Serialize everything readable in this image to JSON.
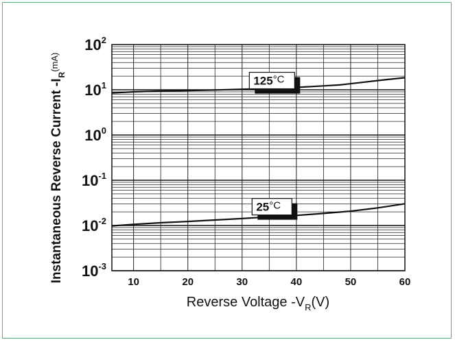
{
  "chart_data": {
    "type": "line",
    "ylabel": "Instantaneous Reverse Current -I",
    "ylabel_sub": "R",
    "ylabel_unit": "(mA)",
    "xlabel": "Reverse  Voltage -V",
    "xlabel_sub": "R",
    "xlabel_unit": "(V)",
    "xlim": [
      6,
      60
    ],
    "ylim": [
      0.001,
      100
    ],
    "yscale": "log",
    "grid": true,
    "x_ticks": [
      10,
      20,
      30,
      40,
      50,
      60
    ],
    "y_ticks": [
      {
        "value": 100,
        "base": "10",
        "exp": "2"
      },
      {
        "value": 10,
        "base": "10",
        "exp": "1"
      },
      {
        "value": 1,
        "base": "10",
        "exp": "0"
      },
      {
        "value": 0.1,
        "base": "10",
        "exp": "-1"
      },
      {
        "value": 0.01,
        "base": "10",
        "exp": "-2"
      },
      {
        "value": 0.001,
        "base": "10",
        "exp": "-3"
      }
    ],
    "series": [
      {
        "name": "125°C",
        "label_num": "125",
        "label_unit": "°C",
        "label_at": {
          "x": 35,
          "y": 16
        },
        "x": [
          6,
          10,
          15,
          20,
          25,
          30,
          35,
          40,
          45,
          48,
          52,
          56,
          60
        ],
        "y": [
          8.5,
          9.0,
          9.4,
          9.6,
          9.9,
          10.3,
          10.7,
          11.3,
          12.2,
          12.8,
          14.5,
          16.5,
          18.5
        ]
      },
      {
        "name": "25°C",
        "label_num": "25",
        "label_unit": "°C",
        "label_at": {
          "x": 35,
          "y": 0.026
        },
        "x": [
          6,
          10,
          15,
          20,
          25,
          30,
          35,
          40,
          45,
          50,
          55,
          60
        ],
        "y": [
          0.0098,
          0.0106,
          0.0115,
          0.0123,
          0.0132,
          0.0142,
          0.0155,
          0.0167,
          0.0185,
          0.0207,
          0.0245,
          0.0302
        ]
      }
    ]
  }
}
